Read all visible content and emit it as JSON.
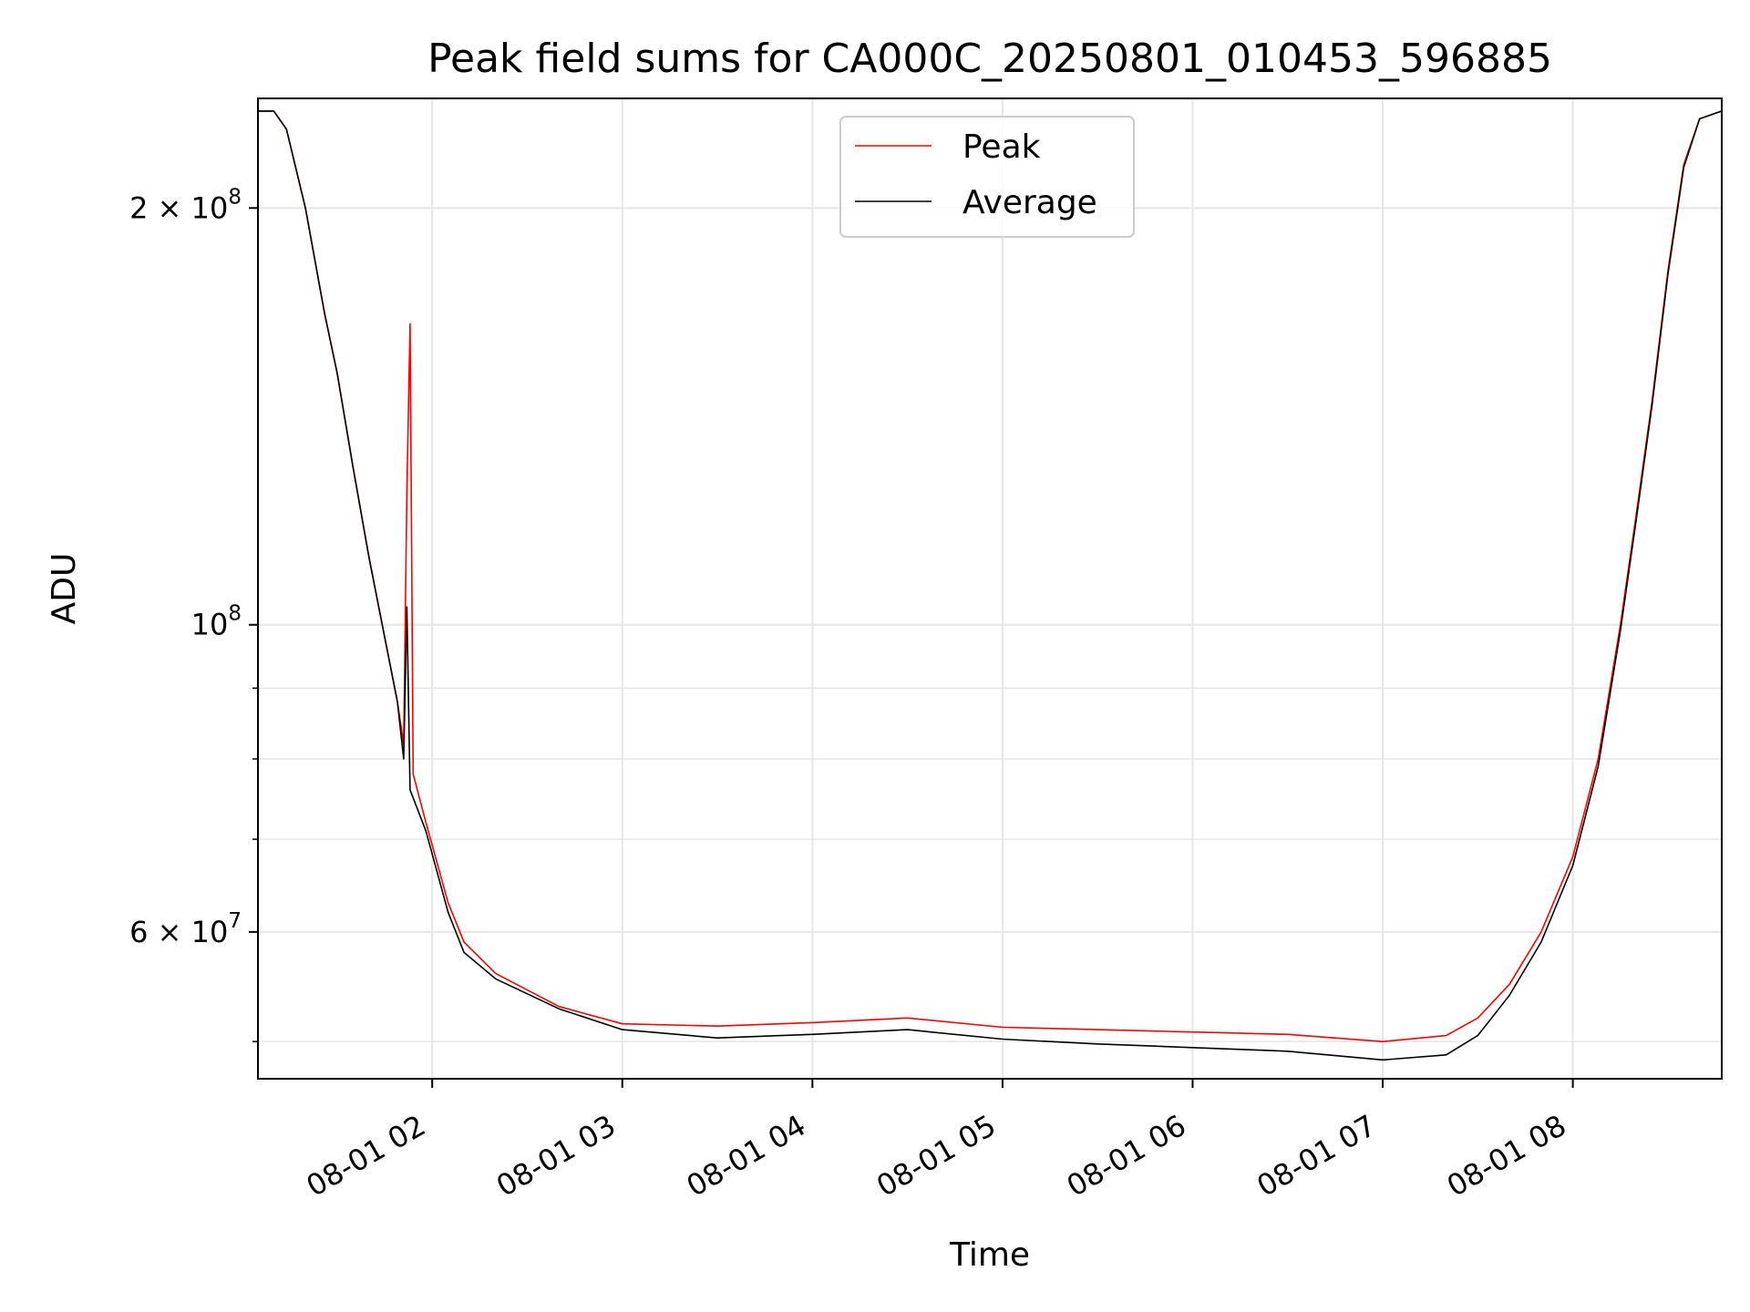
{
  "chart_data": {
    "type": "line",
    "title": "Peak field sums for CA000C_20250801_010453_596885",
    "xlabel": "Time",
    "ylabel": "ADU",
    "yscale": "log",
    "grid": true,
    "legend_position": "top-center",
    "xlim": [
      "08-01 01:05",
      "08-01 08:47"
    ],
    "ylim": [
      47000000,
      240000000
    ],
    "x_ticks": [
      {
        "value": "08-01 02:00",
        "label": "08-01 02"
      },
      {
        "value": "08-01 03:00",
        "label": "08-01 03"
      },
      {
        "value": "08-01 04:00",
        "label": "08-01 04"
      },
      {
        "value": "08-01 05:00",
        "label": "08-01 05"
      },
      {
        "value": "08-01 06:00",
        "label": "08-01 06"
      },
      {
        "value": "08-01 07:00",
        "label": "08-01 07"
      },
      {
        "value": "08-01 08:00",
        "label": "08-01 08"
      }
    ],
    "y_ticks": [
      {
        "value": 200000000,
        "base": "2 × 10",
        "exp": "8"
      },
      {
        "value": 100000000,
        "base": "10",
        "exp": "8"
      },
      {
        "value": 60000000,
        "base": "6 × 10",
        "exp": "7"
      }
    ],
    "y_minor_ticks": [
      50000000,
      70000000,
      80000000,
      90000000
    ],
    "series": [
      {
        "name": "Peak",
        "color": "#ff0000",
        "points": [
          [
            "08-01 01:05",
            235000000
          ],
          [
            "08-01 01:10",
            235000000
          ],
          [
            "08-01 01:14",
            228000000
          ],
          [
            "08-01 01:20",
            200000000
          ],
          [
            "08-01 01:26",
            168000000
          ],
          [
            "08-01 01:30",
            152000000
          ],
          [
            "08-01 01:35",
            130000000
          ],
          [
            "08-01 01:40",
            112000000
          ],
          [
            "08-01 01:45",
            98000000
          ],
          [
            "08-01 01:49",
            88000000
          ],
          [
            "08-01 01:51",
            82000000
          ],
          [
            "08-01 01:52",
            125000000
          ],
          [
            "08-01 01:53",
            165000000
          ],
          [
            "08-01 01:54",
            78000000
          ],
          [
            "08-01 01:58",
            72000000
          ],
          [
            "08-01 02:05",
            63000000
          ],
          [
            "08-01 02:10",
            59000000
          ],
          [
            "08-01 02:20",
            56000000
          ],
          [
            "08-01 02:40",
            53000000
          ],
          [
            "08-01 03:00",
            51500000
          ],
          [
            "08-01 03:30",
            51300000
          ],
          [
            "08-01 04:00",
            51600000
          ],
          [
            "08-01 04:30",
            52000000
          ],
          [
            "08-01 05:00",
            51200000
          ],
          [
            "08-01 05:30",
            51000000
          ],
          [
            "08-01 06:00",
            50800000
          ],
          [
            "08-01 06:30",
            50600000
          ],
          [
            "08-01 07:00",
            50000000
          ],
          [
            "08-01 07:20",
            50500000
          ],
          [
            "08-01 07:30",
            52000000
          ],
          [
            "08-01 07:40",
            55000000
          ],
          [
            "08-01 07:50",
            60000000
          ],
          [
            "08-01 08:00",
            68000000
          ],
          [
            "08-01 08:08",
            80000000
          ],
          [
            "08-01 08:15",
            100000000
          ],
          [
            "08-01 08:20",
            120000000
          ],
          [
            "08-01 08:25",
            145000000
          ],
          [
            "08-01 08:30",
            180000000
          ],
          [
            "08-01 08:35",
            215000000
          ],
          [
            "08-01 08:40",
            232000000
          ],
          [
            "08-01 08:47",
            235000000
          ]
        ]
      },
      {
        "name": "Average",
        "color": "#000000",
        "points": [
          [
            "08-01 01:05",
            235000000
          ],
          [
            "08-01 01:10",
            235000000
          ],
          [
            "08-01 01:14",
            228000000
          ],
          [
            "08-01 01:20",
            200000000
          ],
          [
            "08-01 01:26",
            168000000
          ],
          [
            "08-01 01:30",
            152000000
          ],
          [
            "08-01 01:35",
            130000000
          ],
          [
            "08-01 01:40",
            112000000
          ],
          [
            "08-01 01:45",
            98000000
          ],
          [
            "08-01 01:49",
            88000000
          ],
          [
            "08-01 01:51",
            80000000
          ],
          [
            "08-01 01:52",
            103000000
          ],
          [
            "08-01 01:53",
            76000000
          ],
          [
            "08-01 01:58",
            71000000
          ],
          [
            "08-01 02:05",
            62000000
          ],
          [
            "08-01 02:10",
            58000000
          ],
          [
            "08-01 02:20",
            55500000
          ],
          [
            "08-01 02:40",
            52800000
          ],
          [
            "08-01 03:00",
            51000000
          ],
          [
            "08-01 03:30",
            50300000
          ],
          [
            "08-01 04:00",
            50600000
          ],
          [
            "08-01 04:30",
            51000000
          ],
          [
            "08-01 05:00",
            50200000
          ],
          [
            "08-01 05:30",
            49800000
          ],
          [
            "08-01 06:00",
            49500000
          ],
          [
            "08-01 06:30",
            49200000
          ],
          [
            "08-01 07:00",
            48500000
          ],
          [
            "08-01 07:20",
            48900000
          ],
          [
            "08-01 07:30",
            50500000
          ],
          [
            "08-01 07:40",
            54000000
          ],
          [
            "08-01 07:50",
            59000000
          ],
          [
            "08-01 08:00",
            67000000
          ],
          [
            "08-01 08:08",
            79000000
          ],
          [
            "08-01 08:15",
            99000000
          ],
          [
            "08-01 08:20",
            119000000
          ],
          [
            "08-01 08:25",
            144000000
          ],
          [
            "08-01 08:30",
            179000000
          ],
          [
            "08-01 08:35",
            214000000
          ],
          [
            "08-01 08:40",
            232000000
          ],
          [
            "08-01 08:47",
            235000000
          ]
        ]
      }
    ]
  }
}
